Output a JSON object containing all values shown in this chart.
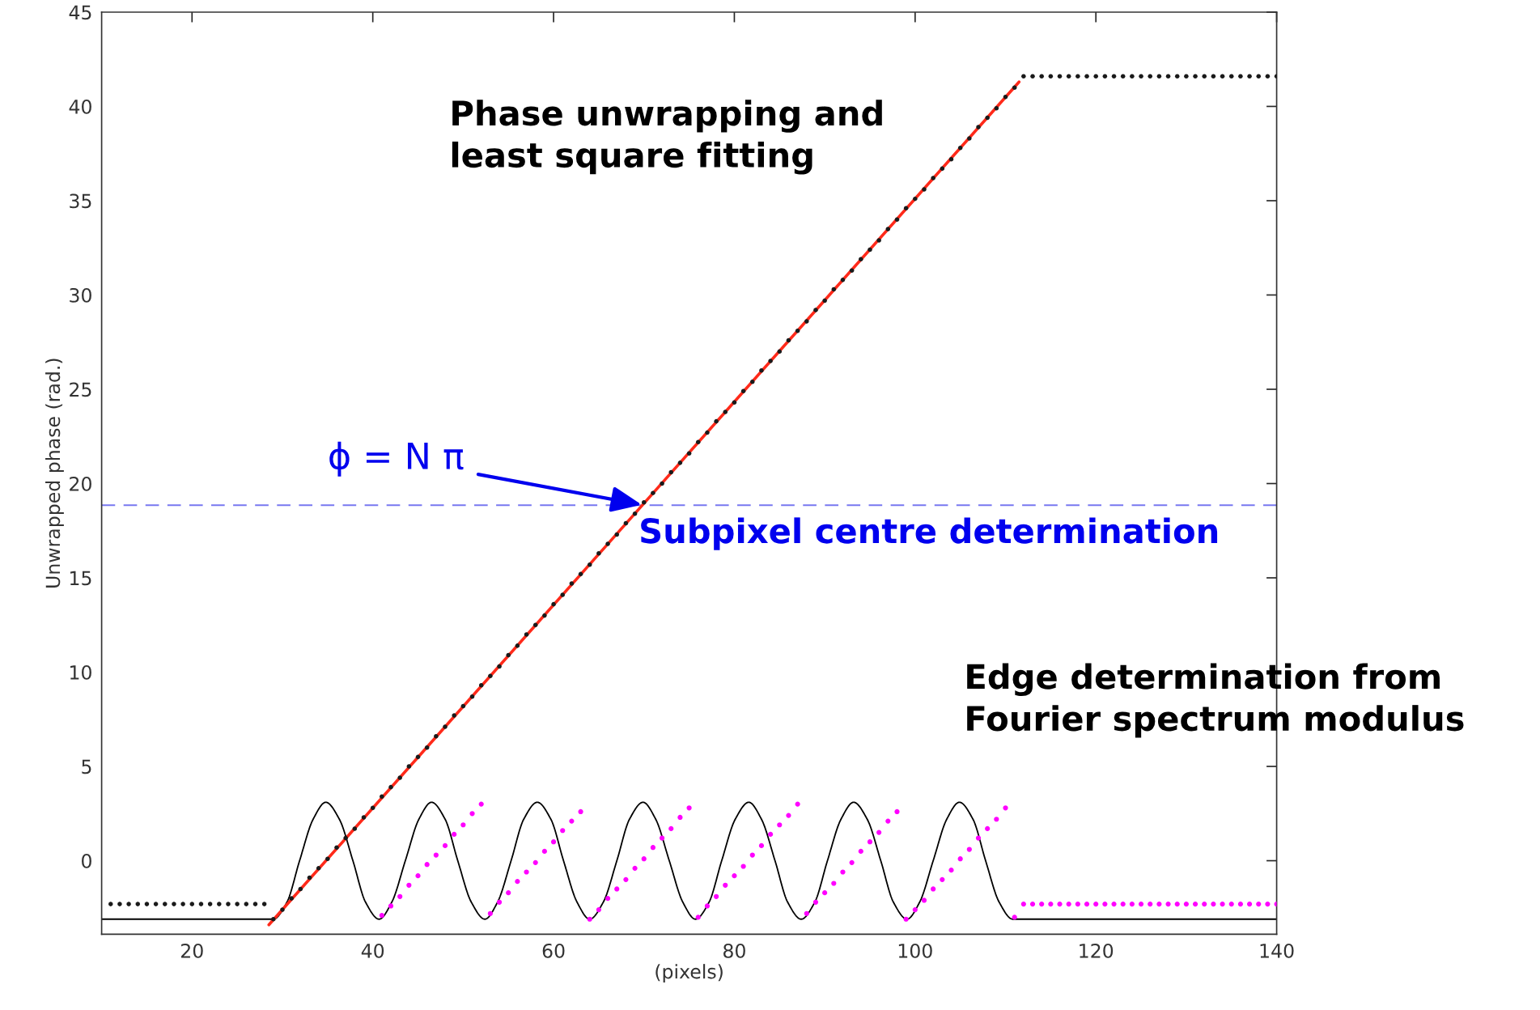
{
  "chart_data": {
    "type": "scatter",
    "xlabel": "(pixels)",
    "ylabel": "Unwrapped phase (rad.)",
    "xlim": [
      10,
      140
    ],
    "xticks": [
      20,
      40,
      60,
      80,
      100,
      120,
      140
    ],
    "ylim": [
      -3.9,
      45
    ],
    "yticks": [
      0,
      5,
      10,
      15,
      20,
      25,
      30,
      35,
      40,
      45
    ],
    "grid": false,
    "legend": false,
    "series": [
      {
        "type": "line",
        "color": "#000000",
        "marker": "none",
        "line_style": "solid",
        "x": [
          10,
          29.0,
          30.5,
          31.9,
          33.4,
          34.8,
          36.3,
          37.8,
          39.2,
          40.7,
          42.1,
          43.6,
          45.1,
          46.5,
          48.0,
          49.4,
          50.9,
          52.4,
          53.8,
          55.3,
          56.7,
          58.2,
          59.7,
          61.1,
          62.6,
          64.0,
          65.5,
          67.0,
          68.4,
          69.9,
          71.3,
          72.8,
          74.3,
          75.7,
          77.2,
          78.6,
          80.1,
          81.6,
          83.0,
          84.5,
          85.9,
          87.4,
          88.9,
          90.3,
          91.8,
          93.2,
          94.7,
          96.2,
          97.6,
          99.1,
          100.5,
          102.0,
          103.5,
          104.9,
          106.4,
          107.8,
          109.3,
          110.8,
          140
        ],
        "values": [
          -3.1,
          -3.1,
          -2.2,
          0,
          2.2,
          3.1,
          2.2,
          0,
          -2.2,
          -3.1,
          -2.2,
          0,
          2.2,
          3.1,
          2.2,
          0,
          -2.2,
          -3.1,
          -2.2,
          0,
          2.2,
          3.1,
          2.2,
          0,
          -2.2,
          -3.1,
          -2.2,
          0,
          2.2,
          3.1,
          2.2,
          0,
          -2.2,
          -3.1,
          -2.2,
          0,
          2.2,
          3.1,
          2.2,
          0,
          -2.2,
          -3.1,
          -2.2,
          0,
          2.2,
          3.1,
          2.2,
          0,
          -2.2,
          -3.1,
          -2.2,
          0,
          2.2,
          3.1,
          2.2,
          0,
          -2.2,
          -3.1,
          -3.1
        ]
      },
      {
        "color": "#ff00ff",
        "marker": "circle",
        "x": [
          41,
          42,
          43,
          44,
          45,
          46,
          47,
          48,
          49,
          50,
          51,
          52,
          53,
          54,
          55,
          56,
          57,
          58,
          59,
          60,
          61,
          62,
          63,
          64,
          65,
          66,
          67,
          68,
          69,
          70,
          71,
          72,
          73,
          74,
          75,
          76,
          77,
          78,
          79,
          80,
          81,
          82,
          83,
          84,
          85,
          86,
          87,
          88,
          89,
          90,
          91,
          92,
          93,
          94,
          95,
          96,
          97,
          98,
          99,
          100,
          101,
          102,
          103,
          104,
          105,
          106,
          107,
          108,
          109,
          110,
          111,
          112,
          113,
          114,
          115,
          116,
          117,
          118,
          119,
          120,
          121,
          122,
          123,
          124,
          125,
          126,
          127,
          128,
          129,
          130,
          131,
          132,
          133,
          134,
          135,
          136,
          137,
          138,
          139,
          140
        ],
        "values": [
          -2.9,
          -2.4,
          -1.9,
          -1.3,
          -0.8,
          -0.2,
          0.3,
          0.8,
          1.4,
          1.9,
          2.5,
          3.0,
          -2.8,
          -2.2,
          -1.7,
          -1.1,
          -0.6,
          -0.1,
          0.5,
          1.0,
          1.6,
          2.1,
          2.6,
          -3.1,
          -2.6,
          -2.0,
          -1.5,
          -1.0,
          -0.4,
          0.1,
          0.7,
          1.2,
          1.7,
          2.3,
          2.8,
          -3.0,
          -2.4,
          -1.9,
          -1.3,
          -0.8,
          -0.3,
          0.3,
          0.8,
          1.4,
          1.9,
          2.4,
          3.0,
          -2.8,
          -2.2,
          -1.7,
          -1.2,
          -0.6,
          -0.1,
          0.5,
          1.0,
          1.5,
          2.1,
          2.6,
          -3.1,
          -2.6,
          -2.1,
          -1.5,
          -1.0,
          -0.5,
          0.1,
          0.6,
          1.2,
          1.7,
          2.2,
          2.8,
          -3.0,
          -2.3,
          -2.3,
          -2.3,
          -2.3,
          -2.3,
          -2.3,
          -2.3,
          -2.3,
          -2.3,
          -2.3,
          -2.3,
          -2.3,
          -2.3,
          -2.3,
          -2.3,
          -2.3,
          -2.3,
          -2.3,
          -2.3,
          -2.3,
          -2.3,
          -2.3,
          -2.3,
          -2.3,
          -2.3,
          -2.3,
          -2.3,
          -2.3,
          -2.3
        ]
      },
      {
        "color": "#1a1a1a",
        "marker": "circle",
        "x": [
          11,
          12,
          13,
          14,
          15,
          16,
          17,
          18,
          19,
          20,
          21,
          22,
          23,
          24,
          25,
          26,
          27,
          28,
          29,
          30,
          31,
          32,
          33,
          34,
          35,
          36,
          37,
          38,
          39,
          40,
          41,
          42,
          43,
          44,
          45,
          46,
          47,
          48,
          49,
          50,
          51,
          52,
          53,
          54,
          55,
          56,
          57,
          58,
          59,
          60,
          61,
          62,
          63,
          64,
          65,
          66,
          67,
          68,
          69,
          70,
          71,
          72,
          73,
          74,
          75,
          76,
          77,
          78,
          79,
          80,
          81,
          82,
          83,
          84,
          85,
          86,
          87,
          88,
          89,
          90,
          91,
          92,
          93,
          94,
          95,
          96,
          97,
          98,
          99,
          100,
          101,
          102,
          103,
          104,
          105,
          106,
          107,
          108,
          109,
          110,
          111,
          112,
          113,
          114,
          115,
          116,
          117,
          118,
          119,
          120,
          121,
          122,
          123,
          124,
          125,
          126,
          127,
          128,
          129,
          130,
          131,
          132,
          133,
          134,
          135,
          136,
          137,
          138,
          139,
          140
        ],
        "values": [
          -2.3,
          -2.3,
          -2.3,
          -2.3,
          -2.3,
          -2.3,
          -2.3,
          -2.3,
          -2.3,
          -2.3,
          -2.3,
          -2.3,
          -2.3,
          -2.3,
          -2.3,
          -2.3,
          -2.3,
          -2.3,
          -3.1,
          -2.6,
          -2.0,
          -1.5,
          -0.9,
          -0.4,
          0.1,
          0.7,
          1.2,
          1.7,
          2.3,
          2.8,
          3.4,
          3.9,
          4.4,
          5.0,
          5.5,
          6.0,
          6.6,
          7.1,
          7.7,
          8.2,
          8.7,
          9.3,
          9.8,
          10.3,
          10.9,
          11.4,
          12.0,
          12.5,
          13.0,
          13.6,
          14.1,
          14.7,
          15.2,
          15.7,
          16.3,
          16.8,
          17.3,
          17.9,
          18.4,
          19.0,
          19.5,
          20.0,
          20.6,
          21.1,
          21.6,
          22.2,
          22.7,
          23.3,
          23.8,
          24.3,
          24.9,
          25.4,
          26.0,
          26.5,
          27.0,
          27.6,
          28.1,
          28.6,
          29.2,
          29.7,
          30.3,
          30.8,
          31.3,
          31.9,
          32.4,
          32.9,
          33.5,
          34.0,
          34.6,
          35.1,
          35.6,
          36.2,
          36.7,
          37.2,
          37.8,
          38.3,
          38.9,
          39.4,
          39.9,
          40.5,
          41.0,
          41.6,
          41.6,
          41.6,
          41.6,
          41.6,
          41.6,
          41.6,
          41.6,
          41.6,
          41.6,
          41.6,
          41.6,
          41.6,
          41.6,
          41.6,
          41.6,
          41.6,
          41.6,
          41.6,
          41.6,
          41.6,
          41.6,
          41.6,
          41.6,
          41.6,
          41.6,
          41.6,
          41.6,
          41.6
        ]
      },
      {
        "type": "line",
        "color": "#ff2a1a",
        "marker": "none",
        "line_style": "solid",
        "x": [
          28.5,
          111.5
        ],
        "values": [
          -3.4,
          41.3
        ]
      }
    ],
    "ref_lines": [
      {
        "axis": "y",
        "value": 18.85,
        "color": "#7878f0",
        "line_style": "dashed"
      }
    ],
    "annotations": [
      "Phase unwrapping and\nleast square fitting",
      {
        "text": "ϕ = N π",
        "x": 70,
        "y": 18.85
      },
      "Subpixel centre determination",
      "Edge determination from\nFourier spectrum modulus"
    ]
  }
}
